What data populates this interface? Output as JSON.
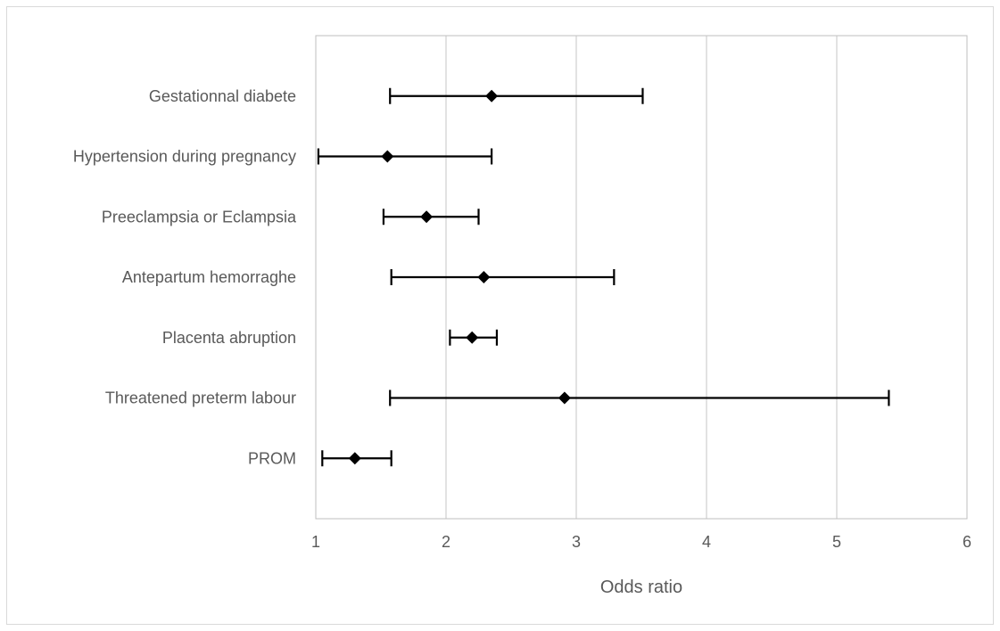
{
  "chart_data": {
    "type": "forest",
    "title": "",
    "xlabel": "Odds ratio",
    "ylabel": "",
    "xlim": [
      1,
      6
    ],
    "xticks": [
      1,
      2,
      3,
      4,
      5,
      6
    ],
    "grid": "vertical",
    "legend": "none",
    "colors": {
      "marker": "#000000",
      "grid": "#d9d9d9",
      "axis": "#bfbfbf",
      "text": "#595959"
    },
    "categories": [
      "Gestationnal diabete",
      "Hypertension during pregnancy",
      "Preeclampsia or Eclampsia",
      "Antepartum hemorraghe",
      "Placenta abruption",
      "Threatened preterm labour",
      "PROM"
    ],
    "or": [
      2.35,
      1.55,
      1.85,
      2.29,
      2.2,
      2.91,
      1.3
    ],
    "ci_low": [
      1.57,
      1.02,
      1.52,
      1.58,
      2.03,
      1.57,
      1.05
    ],
    "ci_high": [
      3.51,
      2.35,
      2.25,
      3.29,
      2.39,
      5.4,
      1.58
    ]
  }
}
